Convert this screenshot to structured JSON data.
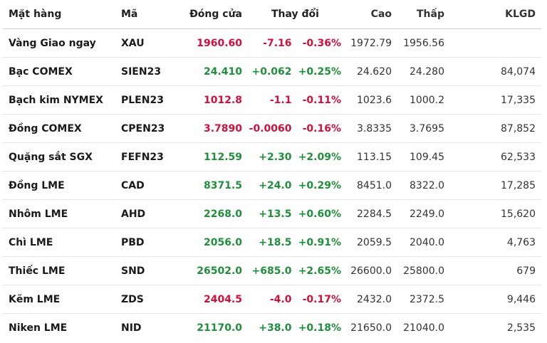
{
  "headers": {
    "name": "Mặt hàng",
    "code": "Mã",
    "close": "Đóng cửa",
    "change": "Thay đổi",
    "high": "Cao",
    "low": "Thấp",
    "volume": "KLGD"
  },
  "colors": {
    "up": "#1f8f3a",
    "down": "#d0103a"
  },
  "rows": [
    {
      "name": "Vàng Giao ngay",
      "code": "XAU",
      "close": "1960.60",
      "change": "-7.16",
      "pct": "-0.36%",
      "high": "1972.79",
      "low": "1956.56",
      "volume": "",
      "dir": "down"
    },
    {
      "name": "Bạc COMEX",
      "code": "SIEN23",
      "close": "24.410",
      "change": "+0.062",
      "pct": "+0.25%",
      "high": "24.620",
      "low": "24.280",
      "volume": "84,074",
      "dir": "up"
    },
    {
      "name": "Bạch kim NYMEX",
      "code": "PLEN23",
      "close": "1012.8",
      "change": "-1.1",
      "pct": "-0.11%",
      "high": "1023.6",
      "low": "1000.2",
      "volume": "17,335",
      "dir": "down"
    },
    {
      "name": "Đồng COMEX",
      "code": "CPEN23",
      "close": "3.7890",
      "change": "-0.0060",
      "pct": "-0.16%",
      "high": "3.8335",
      "low": "3.7695",
      "volume": "87,852",
      "dir": "down"
    },
    {
      "name": "Quặng sắt SGX",
      "code": "FEFN23",
      "close": "112.59",
      "change": "+2.30",
      "pct": "+2.09%",
      "high": "113.15",
      "low": "109.45",
      "volume": "62,533",
      "dir": "up"
    },
    {
      "name": "Đồng LME",
      "code": "CAD",
      "close": "8371.5",
      "change": "+24.0",
      "pct": "+0.29%",
      "high": "8451.0",
      "low": "8322.0",
      "volume": "17,285",
      "dir": "up"
    },
    {
      "name": "Nhôm LME",
      "code": "AHD",
      "close": "2268.0",
      "change": "+13.5",
      "pct": "+0.60%",
      "high": "2284.5",
      "low": "2249.0",
      "volume": "15,620",
      "dir": "up"
    },
    {
      "name": "Chì LME",
      "code": "PBD",
      "close": "2056.0",
      "change": "+18.5",
      "pct": "+0.91%",
      "high": "2059.5",
      "low": "2040.0",
      "volume": "4,763",
      "dir": "up"
    },
    {
      "name": "Thiếc LME",
      "code": "SND",
      "close": "26502.0",
      "change": "+685.0",
      "pct": "+2.65%",
      "high": "26600.0",
      "low": "25800.0",
      "volume": "679",
      "dir": "up"
    },
    {
      "name": "Kẽm LME",
      "code": "ZDS",
      "close": "2404.5",
      "change": "-4.0",
      "pct": "-0.17%",
      "high": "2432.0",
      "low": "2372.5",
      "volume": "9,446",
      "dir": "down"
    },
    {
      "name": "Niken LME",
      "code": "NID",
      "close": "21170.0",
      "change": "+38.0",
      "pct": "+0.18%",
      "high": "21650.0",
      "low": "21040.0",
      "volume": "2,535",
      "dir": "up"
    }
  ]
}
